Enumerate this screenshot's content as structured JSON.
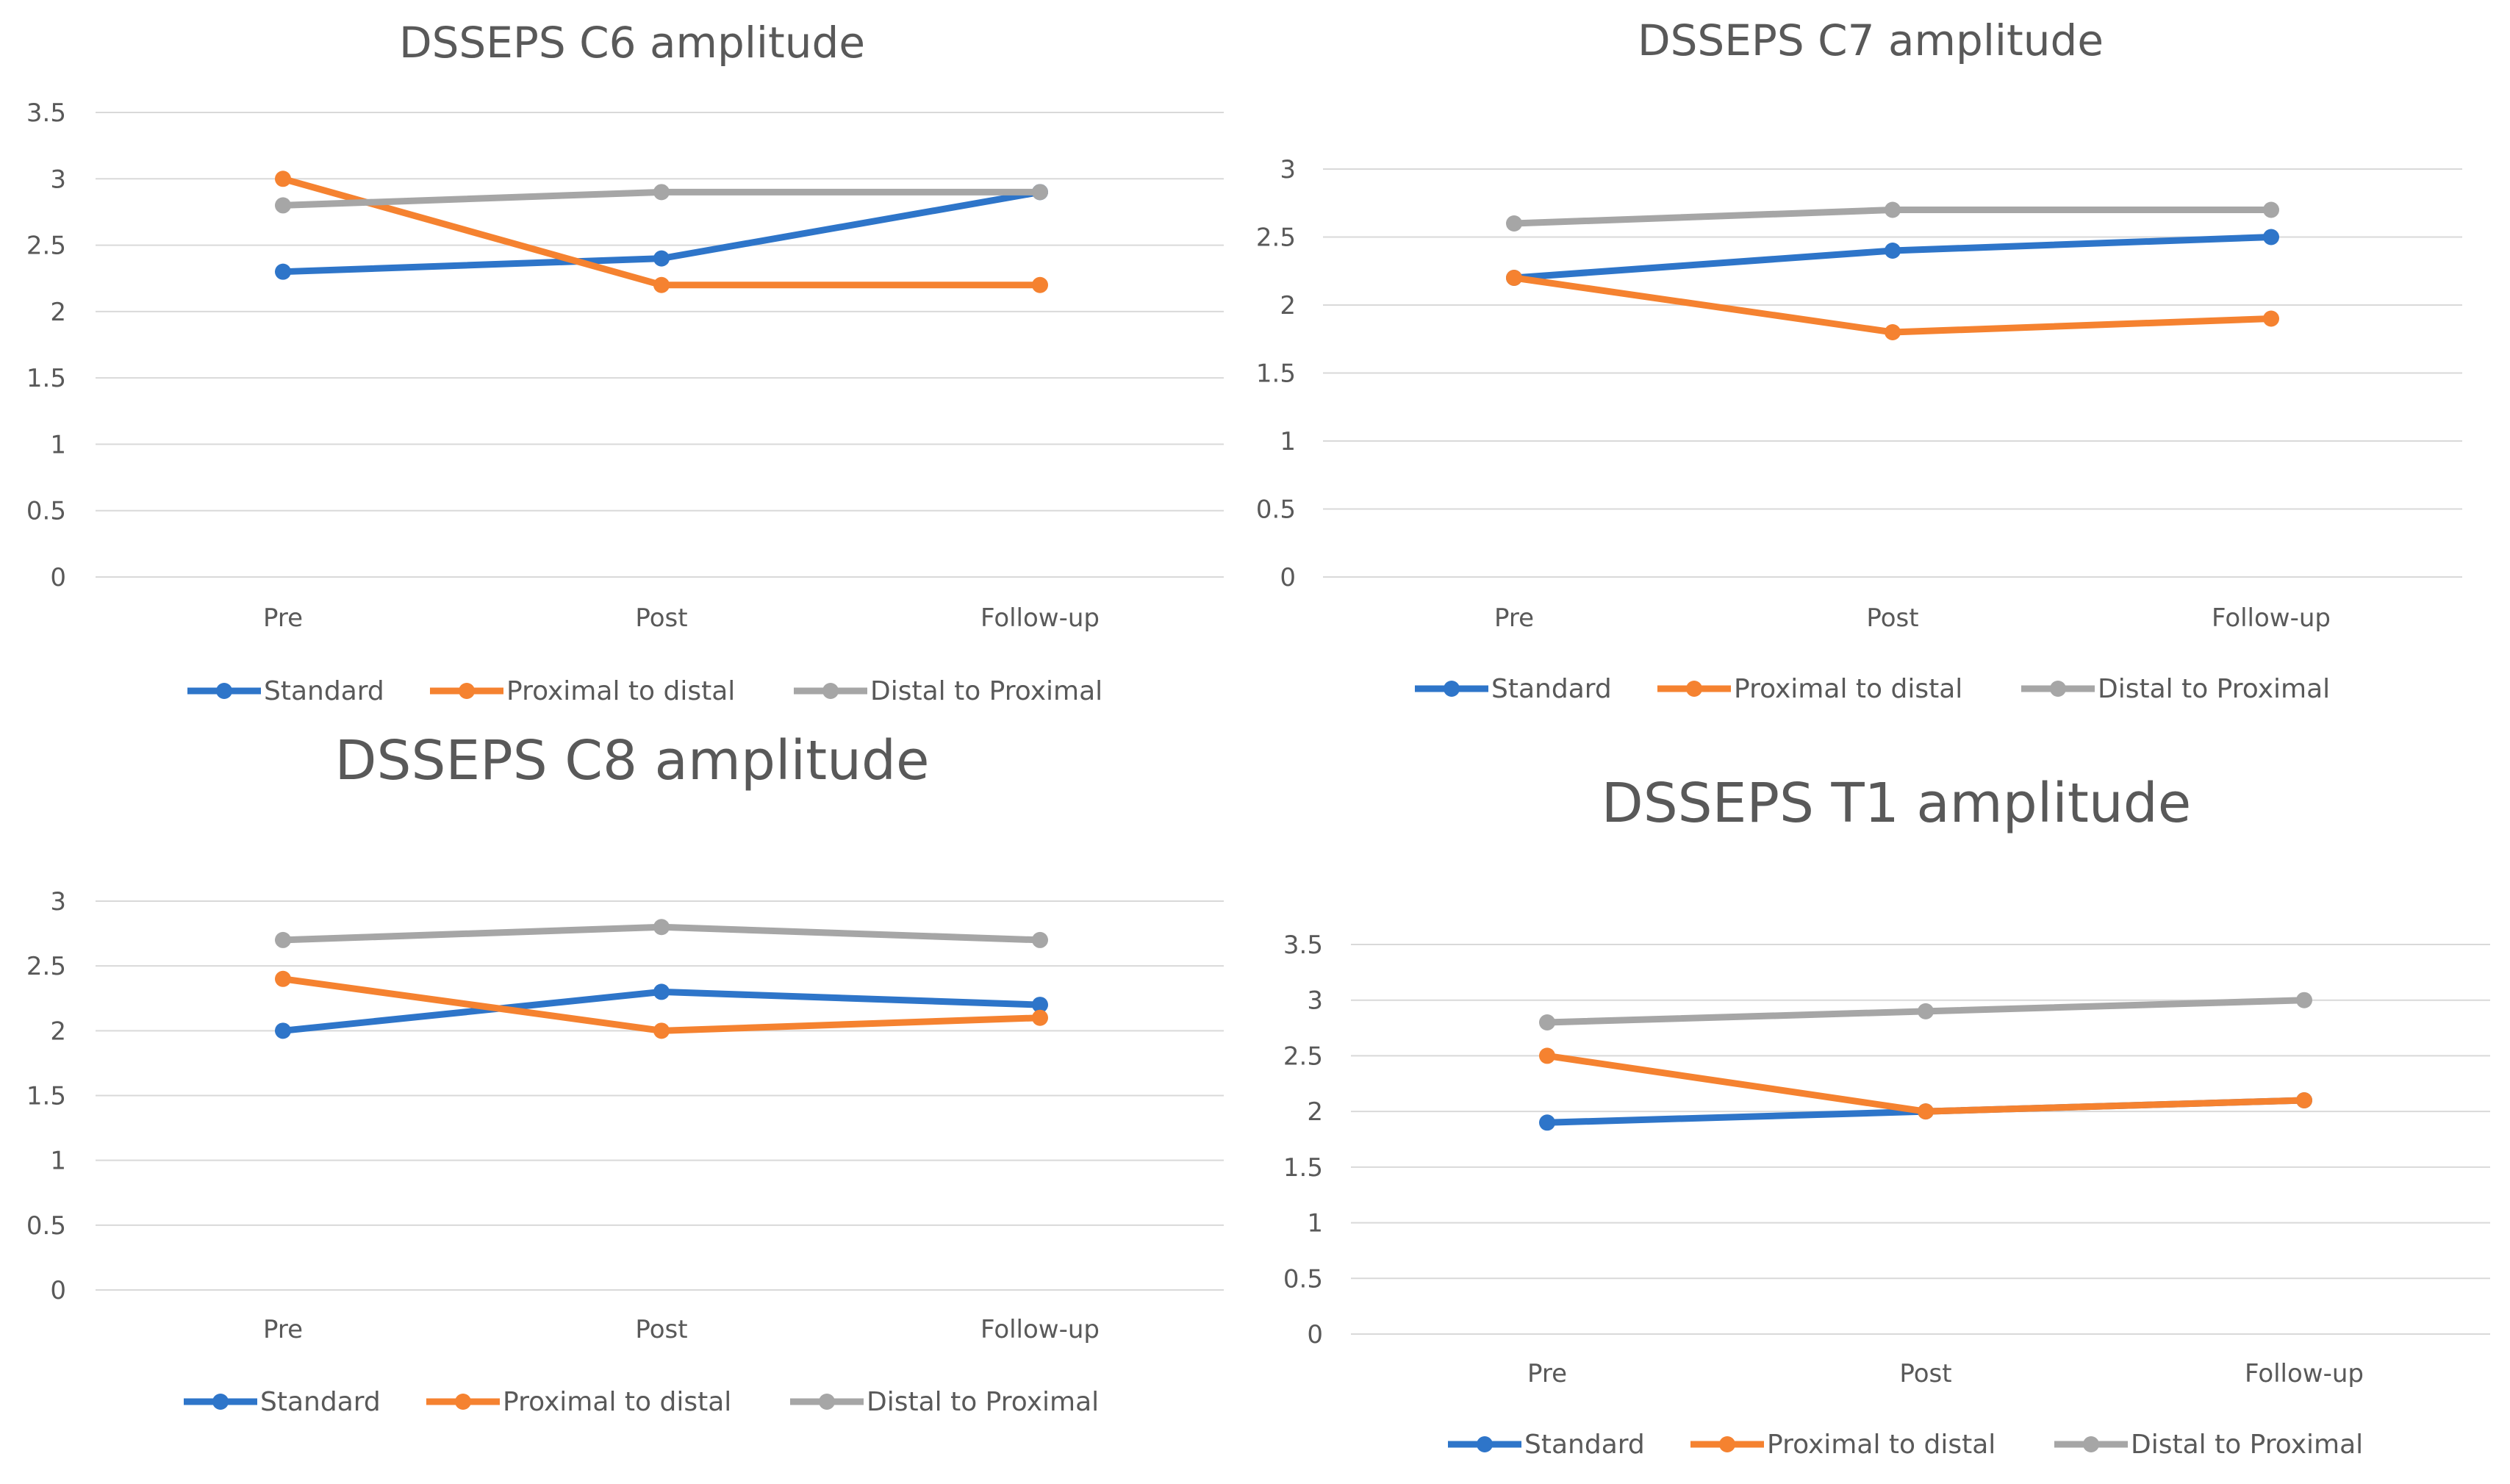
{
  "chart_data": [
    {
      "type": "line",
      "title": "DSSEPS C6 amplitude",
      "categories": [
        "Pre",
        "Post",
        "Follow-up"
      ],
      "yticks": [
        "0",
        "0.5",
        "1",
        "1.5",
        "2",
        "2.5",
        "3",
        "3.5"
      ],
      "ylim": [
        0,
        3.5
      ],
      "series": [
        {
          "name": "Standard",
          "color": "#2e75c9",
          "values": [
            2.3,
            2.4,
            2.9
          ]
        },
        {
          "name": "Proximal to distal",
          "color": "#f58230",
          "values": [
            3.0,
            2.2,
            2.2
          ]
        },
        {
          "name": "Distal to Proximal",
          "color": "#a6a6a6",
          "values": [
            2.8,
            2.9,
            2.9
          ]
        }
      ]
    },
    {
      "type": "line",
      "title": "DSSEPS C7 amplitude",
      "categories": [
        "Pre",
        "Post",
        "Follow-up"
      ],
      "yticks": [
        "0",
        "0.5",
        "1",
        "1.5",
        "2",
        "2.5",
        "3"
      ],
      "ylim": [
        0,
        3
      ],
      "series": [
        {
          "name": "Standard",
          "color": "#2e75c9",
          "values": [
            2.2,
            2.4,
            2.5
          ]
        },
        {
          "name": "Proximal to distal",
          "color": "#f58230",
          "values": [
            2.2,
            1.8,
            1.9
          ]
        },
        {
          "name": "Distal to Proximal",
          "color": "#a6a6a6",
          "values": [
            2.6,
            2.7,
            2.7
          ]
        }
      ]
    },
    {
      "type": "line",
      "title": "DSSEPS C8 amplitude",
      "categories": [
        "Pre",
        "Post",
        "Follow-up"
      ],
      "yticks": [
        "0",
        "0.5",
        "1",
        "1.5",
        "2",
        "2.5",
        "3"
      ],
      "ylim": [
        0,
        3
      ],
      "series": [
        {
          "name": "Standard",
          "color": "#2e75c9",
          "values": [
            2.0,
            2.3,
            2.2
          ]
        },
        {
          "name": "Proximal to distal",
          "color": "#f58230",
          "values": [
            2.4,
            2.0,
            2.1
          ]
        },
        {
          "name": "Distal to Proximal",
          "color": "#a6a6a6",
          "values": [
            2.7,
            2.8,
            2.7
          ]
        }
      ]
    },
    {
      "type": "line",
      "title": "DSSEPS T1 amplitude",
      "categories": [
        "Pre",
        "Post",
        "Follow-up"
      ],
      "yticks": [
        "0",
        "0.5",
        "1",
        "1.5",
        "2",
        "2.5",
        "3",
        "3.5"
      ],
      "ylim": [
        0,
        3.5
      ],
      "series": [
        {
          "name": "Standard",
          "color": "#2e75c9",
          "values": [
            1.9,
            2.0,
            2.1
          ]
        },
        {
          "name": "Proximal to distal",
          "color": "#f58230",
          "values": [
            2.5,
            2.0,
            2.1
          ]
        },
        {
          "name": "Distal to Proximal",
          "color": "#a6a6a6",
          "values": [
            2.8,
            2.9,
            3.0
          ]
        }
      ]
    }
  ]
}
